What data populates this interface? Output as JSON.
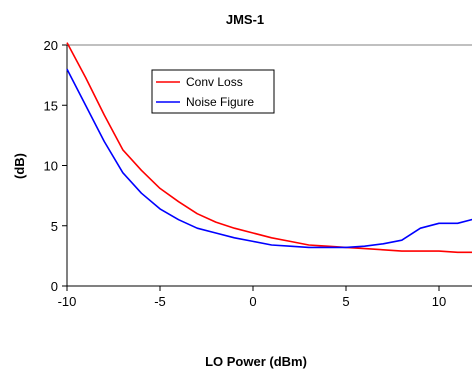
{
  "chart_data": {
    "type": "line",
    "title": "JMS-1",
    "xlabel": "LO Power (dBm)",
    "ylabel": "(dB)",
    "xlim": [
      -10,
      12
    ],
    "ylim": [
      0,
      20
    ],
    "xticks": [
      -10,
      -5,
      0,
      5,
      10
    ],
    "yticks": [
      0,
      5,
      10,
      15,
      20
    ],
    "xtick_labels": [
      "-10",
      "-5",
      "0",
      "5",
      "10"
    ],
    "ytick_labels": [
      "0",
      "5",
      "10",
      "15",
      "20"
    ],
    "grid": false,
    "legend_position": "upper-left inside plot",
    "series": [
      {
        "name": "Conv Loss",
        "color": "#ff0000",
        "x": [
          -10,
          -9,
          -8,
          -7,
          -6,
          -5,
          -4,
          -3,
          -2,
          -1,
          0,
          1,
          2,
          3,
          4,
          5,
          6,
          7,
          8,
          9,
          10,
          11,
          12
        ],
        "y": [
          20.2,
          17.3,
          14.2,
          11.3,
          9.6,
          8.1,
          7.0,
          6.0,
          5.3,
          4.8,
          4.4,
          4.0,
          3.7,
          3.4,
          3.3,
          3.2,
          3.1,
          3.0,
          2.9,
          2.9,
          2.9,
          2.8,
          2.8
        ]
      },
      {
        "name": "Noise Figure",
        "color": "#0000ff",
        "x": [
          -10,
          -9,
          -8,
          -7,
          -6,
          -5,
          -4,
          -3,
          -2,
          -1,
          0,
          1,
          2,
          3,
          4,
          5,
          6,
          7,
          8,
          9,
          10,
          11,
          12
        ],
        "y": [
          18.0,
          15.0,
          12.0,
          9.4,
          7.7,
          6.4,
          5.5,
          4.8,
          4.4,
          4.0,
          3.7,
          3.4,
          3.3,
          3.2,
          3.2,
          3.2,
          3.3,
          3.5,
          3.8,
          4.8,
          5.2,
          5.2,
          5.6
        ]
      }
    ]
  }
}
